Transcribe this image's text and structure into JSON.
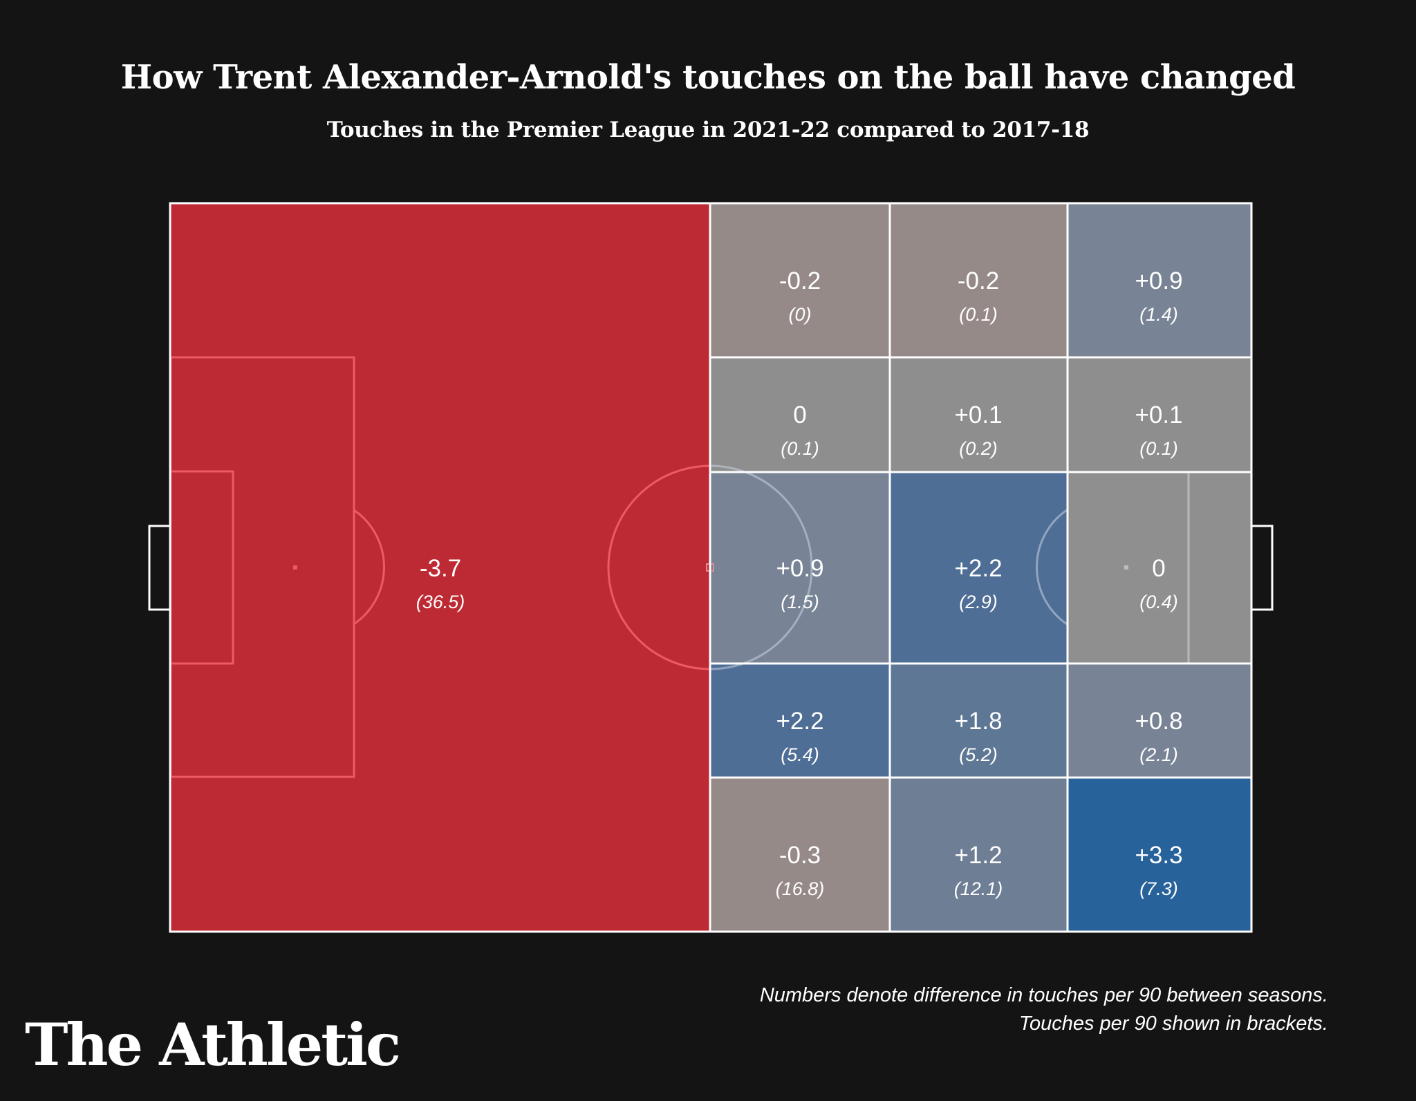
{
  "header": {
    "title": "How Trent Alexander-Arnold's touches on the ball have changed",
    "subtitle": "Touches in the Premier League in 2021-22 compared to 2017-18"
  },
  "footer": {
    "note_line1": "Numbers denote difference in touches per 90 between seasons.",
    "note_line2": "Touches per 90 shown in brackets.",
    "logo": "The Athletic"
  },
  "colors": {
    "background": "#141414",
    "negative_large": "#BE2A33",
    "negative_small": "#968A89",
    "neutral": "#8E8E8F",
    "positive_small": "#788495",
    "positive_medium": "#4F6E96",
    "positive_large": "#28629B",
    "line": "#FFFFFF"
  },
  "zones": {
    "own_half": {
      "diff": "-3.7",
      "per90": "(36.5)",
      "color": "#BE2A33"
    },
    "grid": [
      [
        {
          "diff": "-0.2",
          "per90": "(0)",
          "color": "#968A89"
        },
        {
          "diff": "-0.2",
          "per90": "(0.1)",
          "color": "#968A89"
        },
        {
          "diff": "+0.9",
          "per90": "(1.4)",
          "color": "#788495"
        }
      ],
      [
        {
          "diff": "0",
          "per90": "(0.1)",
          "color": "#8E8E8F"
        },
        {
          "diff": "+0.1",
          "per90": "(0.2)",
          "color": "#8E8E8F"
        },
        {
          "diff": "+0.1",
          "per90": "(0.1)",
          "color": "#8E8E8F"
        }
      ],
      [
        {
          "diff": "+0.9",
          "per90": "(1.5)",
          "color": "#788495"
        },
        {
          "diff": "+2.2",
          "per90": "(2.9)",
          "color": "#4F6E96"
        },
        {
          "diff": "0",
          "per90": "(0.4)",
          "color": "#8F8F8F"
        }
      ],
      [
        {
          "diff": "+2.2",
          "per90": "(5.4)",
          "color": "#4F6E96"
        },
        {
          "diff": "+1.8",
          "per90": "(5.2)",
          "color": "#5E7795"
        },
        {
          "diff": "+0.8",
          "per90": "(2.1)",
          "color": "#788495"
        }
      ],
      [
        {
          "diff": "-0.3",
          "per90": "(16.8)",
          "color": "#968A89"
        },
        {
          "diff": "+1.2",
          "per90": "(12.1)",
          "color": "#6E7E95"
        },
        {
          "diff": "+3.3",
          "per90": "(7.3)",
          "color": "#28629B"
        }
      ]
    ]
  },
  "chart_data": {
    "type": "heatmap",
    "title": "How Trent Alexander-Arnold's touches on the ball have changed",
    "subtitle": "Touches in the Premier League in 2021-22 compared to 2017-18",
    "description": "Football pitch divided into zones; own half is a single zone, attacking half split into 5 rows x 3 columns. Values are change in touches per 90 (2021-22 minus 2017-18); bracketed values are 2021-22 touches per 90.",
    "zones": [
      {
        "zone": "own half",
        "row": null,
        "col": null,
        "diff": -3.7,
        "per90": 36.5
      },
      {
        "zone": "attacking half",
        "row": 1,
        "col": 1,
        "diff": -0.2,
        "per90": 0
      },
      {
        "zone": "attacking half",
        "row": 1,
        "col": 2,
        "diff": -0.2,
        "per90": 0.1
      },
      {
        "zone": "attacking half",
        "row": 1,
        "col": 3,
        "diff": 0.9,
        "per90": 1.4
      },
      {
        "zone": "attacking half",
        "row": 2,
        "col": 1,
        "diff": 0,
        "per90": 0.1
      },
      {
        "zone": "attacking half",
        "row": 2,
        "col": 2,
        "diff": 0.1,
        "per90": 0.2
      },
      {
        "zone": "attacking half",
        "row": 2,
        "col": 3,
        "diff": 0.1,
        "per90": 0.1
      },
      {
        "zone": "attacking half",
        "row": 3,
        "col": 1,
        "diff": 0.9,
        "per90": 1.5
      },
      {
        "zone": "attacking half",
        "row": 3,
        "col": 2,
        "diff": 2.2,
        "per90": 2.9
      },
      {
        "zone": "attacking half",
        "row": 3,
        "col": 3,
        "diff": 0,
        "per90": 0.4
      },
      {
        "zone": "attacking half",
        "row": 4,
        "col": 1,
        "diff": 2.2,
        "per90": 5.4
      },
      {
        "zone": "attacking half",
        "row": 4,
        "col": 2,
        "diff": 1.8,
        "per90": 5.2
      },
      {
        "zone": "attacking half",
        "row": 4,
        "col": 3,
        "diff": 0.8,
        "per90": 2.1
      },
      {
        "zone": "attacking half",
        "row": 5,
        "col": 1,
        "diff": -0.3,
        "per90": 16.8
      },
      {
        "zone": "attacking half",
        "row": 5,
        "col": 2,
        "diff": 1.2,
        "per90": 12.1
      },
      {
        "zone": "attacking half",
        "row": 5,
        "col": 3,
        "diff": 3.3,
        "per90": 7.3
      }
    ],
    "annotations": [
      "Numbers denote difference in touches per 90 between seasons.",
      "Touches per 90 shown in brackets."
    ],
    "color_scale": "diverging red (negative) to blue (positive)",
    "legend": "none"
  }
}
